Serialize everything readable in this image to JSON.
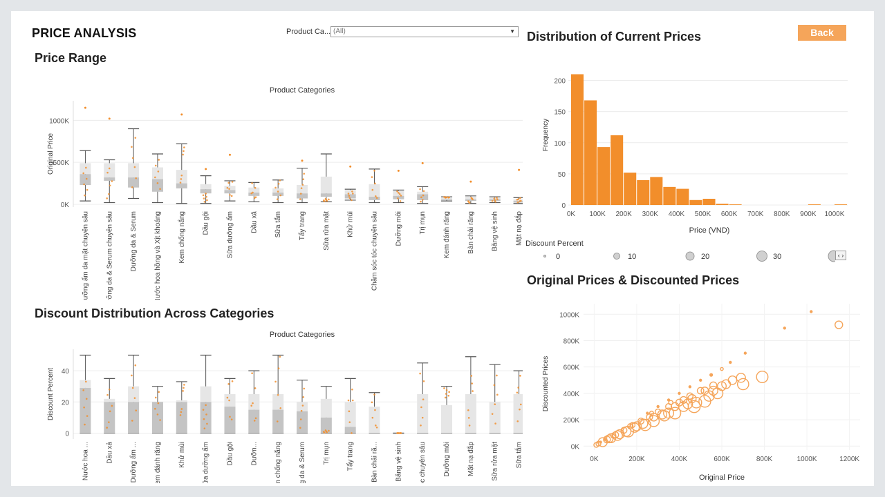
{
  "header": {
    "title": "PRICE ANALYSIS",
    "filter_label": "Product Ca...",
    "filter_value": "(All)",
    "back_label": "Back"
  },
  "colors": {
    "accent": "#f28e2b",
    "accent_light": "#f5a55a",
    "box_dark": "#c4c4c4",
    "box_light": "#e6e6e6",
    "whisker": "#555555"
  },
  "price_range": {
    "title": "Price Range",
    "top_label": "Product Categories",
    "ylabel": "Original Price",
    "yticks": [
      {
        "v": 0,
        "label": "0K"
      },
      {
        "v": 500,
        "label": "500K"
      },
      {
        "v": 1000,
        "label": "1000K"
      }
    ]
  },
  "discount_dist": {
    "title": "Discount Distribution Across Categories",
    "top_label": "Product Categories",
    "ylabel": "Discount Percent",
    "yticks": [
      {
        "v": 0,
        "label": "0"
      },
      {
        "v": 20,
        "label": "20"
      },
      {
        "v": 40,
        "label": "40"
      }
    ]
  },
  "histogram": {
    "title": "Distribution of Current Prices",
    "xlabel": "Price (VND)",
    "ylabel": "Frequency",
    "yticks": [
      0,
      50,
      100,
      150,
      200
    ],
    "xticks": [
      "0K",
      "100K",
      "200K",
      "300K",
      "400K",
      "500K",
      "600K",
      "700K",
      "800K",
      "900K",
      "1000K"
    ]
  },
  "legend": {
    "title": "Discount Percent",
    "items": [
      {
        "label": "0"
      },
      {
        "label": "10"
      },
      {
        "label": "20"
      },
      {
        "label": "30"
      }
    ],
    "nav": "‹ ›"
  },
  "scatter": {
    "title": "Original Prices & Discounted Prices",
    "xlabel": "Original Price",
    "ylabel": "Discounted Prices",
    "xticks": [
      "0K",
      "200K",
      "400K",
      "600K",
      "800K",
      "1000K",
      "1200K"
    ],
    "yticks": [
      "0K",
      "200K",
      "400K",
      "600K",
      "800K",
      "1000K"
    ]
  },
  "chart_data": [
    {
      "type": "box",
      "title": "Price Range",
      "xlabel": "Product Categories",
      "ylabel": "Original Price",
      "unit": "K VND",
      "ylim": [
        0,
        1200
      ],
      "categories": [
        "Dưỡng ẩm da mặt chuyên sâu",
        "Dưỡng da & Serum chuyên sâu",
        "Dưỡng da & Serum",
        "Nước hoa hồng và Xịt khoáng",
        "Kem chống nắng",
        "Dầu gội",
        "Sữa dưỡng ẩm",
        "Dầu xả",
        "Sữa tắm",
        "Tẩy trang",
        "Sữa rửa mặt",
        "Khử mùi",
        "Chăm sóc tóc chuyên sâu",
        "Dưỡng môi",
        "Trị mụn",
        "Kem đánh răng",
        "Bàn chải răng",
        "Băng vệ sinh",
        "Mặt nạ đắp"
      ],
      "boxes": [
        {
          "min": 40,
          "q1": 230,
          "median": 360,
          "q3": 490,
          "max": 640,
          "outliers": [
            1150
          ]
        },
        {
          "min": 20,
          "q1": 280,
          "median": 320,
          "q3": 490,
          "max": 530,
          "outliers": [
            1020
          ]
        },
        {
          "min": 70,
          "q1": 200,
          "median": 320,
          "q3": 490,
          "max": 900,
          "outliers": []
        },
        {
          "min": 20,
          "q1": 150,
          "median": 300,
          "q3": 440,
          "max": 600,
          "outliers": []
        },
        {
          "min": 10,
          "q1": 190,
          "median": 250,
          "q3": 410,
          "max": 720,
          "outliers": [
            1070
          ]
        },
        {
          "min": 10,
          "q1": 130,
          "median": 180,
          "q3": 240,
          "max": 340,
          "outliers": [
            420
          ]
        },
        {
          "min": 40,
          "q1": 130,
          "median": 170,
          "q3": 220,
          "max": 280,
          "outliers": [
            590
          ]
        },
        {
          "min": 30,
          "q1": 100,
          "median": 140,
          "q3": 200,
          "max": 260,
          "outliers": []
        },
        {
          "min": 20,
          "q1": 100,
          "median": 140,
          "q3": 190,
          "max": 290,
          "outliers": []
        },
        {
          "min": 20,
          "q1": 70,
          "median": 130,
          "q3": 230,
          "max": 430,
          "outliers": [
            520
          ]
        },
        {
          "min": 30,
          "q1": 90,
          "median": 130,
          "q3": 330,
          "max": 600,
          "outliers": []
        },
        {
          "min": 50,
          "q1": 70,
          "median": 120,
          "q3": 170,
          "max": 180,
          "outliers": [
            450
          ]
        },
        {
          "min": 20,
          "q1": 50,
          "median": 90,
          "q3": 240,
          "max": 420,
          "outliers": []
        },
        {
          "min": 20,
          "q1": 60,
          "median": 100,
          "q3": 160,
          "max": 170,
          "outliers": [
            400
          ]
        },
        {
          "min": 10,
          "q1": 50,
          "median": 120,
          "q3": 150,
          "max": 210,
          "outliers": [
            490
          ]
        },
        {
          "min": 40,
          "q1": 50,
          "median": 60,
          "q3": 80,
          "max": 90,
          "outliers": []
        },
        {
          "min": 10,
          "q1": 40,
          "median": 60,
          "q3": 90,
          "max": 100,
          "outliers": [
            270
          ]
        },
        {
          "min": 20,
          "q1": 40,
          "median": 60,
          "q3": 80,
          "max": 90,
          "outliers": []
        },
        {
          "min": 10,
          "q1": 20,
          "median": 40,
          "q3": 60,
          "max": 80,
          "outliers": [
            410
          ]
        }
      ]
    },
    {
      "type": "box",
      "title": "Discount Distribution Across Categories",
      "xlabel": "Product Categories",
      "ylabel": "Discount Percent",
      "ylim": [
        -2,
        52
      ],
      "categories": [
        "Nước hoa ...",
        "Dầu xả",
        "Dưỡng ẩm ...",
        "Kem đánh răng",
        "Khử mùi",
        "Sữa dưỡng ẩm",
        "Dầu gội",
        "Dưỡn...",
        "Kem chống nắng",
        "Dưỡng da & Serum",
        "Trị mụn",
        "Tẩy trang",
        "Bàn chải ră...",
        "Băng vệ sinh",
        "Chăm sóc tóc chuyên sâu",
        "Dưỡng môi",
        "Mặt nạ đắp",
        "Sữa rửa mặt",
        "Sữa tắm"
      ],
      "boxes": [
        {
          "min": 0,
          "q1": 0,
          "median": 29,
          "q3": 34,
          "max": 50
        },
        {
          "min": 0,
          "q1": 0,
          "median": 20,
          "q3": 22,
          "max": 35
        },
        {
          "min": 0,
          "q1": 0,
          "median": 20,
          "q3": 30,
          "max": 50
        },
        {
          "min": 0,
          "q1": 0,
          "median": 20,
          "q3": 20,
          "max": 30
        },
        {
          "min": 0,
          "q1": 0,
          "median": 20,
          "q3": 21,
          "max": 33
        },
        {
          "min": 0,
          "q1": 0,
          "median": 20,
          "q3": 30,
          "max": 50
        },
        {
          "min": 0,
          "q1": 0,
          "median": 17,
          "q3": 25,
          "max": 35
        },
        {
          "min": 0,
          "q1": 0,
          "median": 15,
          "q3": 25,
          "max": 40
        },
        {
          "min": 0,
          "q1": 0,
          "median": 15,
          "q3": 25,
          "max": 50
        },
        {
          "min": 0,
          "q1": 0,
          "median": 14,
          "q3": 20,
          "max": 34
        },
        {
          "min": 0,
          "q1": 0,
          "median": 10,
          "q3": 22,
          "max": 30
        },
        {
          "min": 0,
          "q1": 0,
          "median": 4,
          "q3": 20,
          "max": 35
        },
        {
          "min": 0,
          "q1": 0,
          "median": 0,
          "q3": 17,
          "max": 26
        },
        {
          "min": 0,
          "q1": 0,
          "median": 0,
          "q3": 0,
          "max": 0
        },
        {
          "min": 0,
          "q1": 0,
          "median": 0,
          "q3": 25,
          "max": 45
        },
        {
          "min": 0,
          "q1": 0,
          "median": 0,
          "q3": 18,
          "max": 30
        },
        {
          "min": 0,
          "q1": 0,
          "median": 0,
          "q3": 25,
          "max": 49
        },
        {
          "min": 0,
          "q1": 0,
          "median": 0,
          "q3": 20,
          "max": 44
        },
        {
          "min": 0,
          "q1": 0,
          "median": 0,
          "q3": 25,
          "max": 40
        }
      ]
    },
    {
      "type": "bar",
      "title": "Distribution of Current Prices",
      "xlabel": "Price (VND)",
      "ylabel": "Frequency",
      "bin_width": 50,
      "unit": "K VND",
      "bins_start": [
        0,
        50,
        100,
        150,
        200,
        250,
        300,
        350,
        400,
        450,
        500,
        550,
        600,
        650,
        700,
        750,
        800,
        850,
        900,
        950,
        1000
      ],
      "values": [
        210,
        168,
        93,
        112,
        52,
        40,
        45,
        29,
        26,
        8,
        10,
        2,
        1,
        0,
        0,
        0,
        0,
        0,
        1,
        0,
        1
      ],
      "ylim": [
        0,
        225
      ]
    },
    {
      "type": "scatter",
      "title": "Original Prices & Discounted Prices",
      "xlabel": "Original Price",
      "ylabel": "Discounted Prices",
      "unit": "K VND",
      "xlim": [
        -50,
        1250
      ],
      "ylim": [
        -30,
        1080
      ],
      "size_by": "Discount Percent",
      "points": [
        [
          1020,
          1020,
          0
        ],
        [
          895,
          895,
          0
        ],
        [
          1150,
          920,
          20
        ],
        [
          790,
          525,
          34
        ],
        [
          700,
          470,
          33
        ],
        [
          690,
          518,
          25
        ],
        [
          710,
          705,
          0
        ],
        [
          640,
          635,
          0
        ],
        [
          600,
          455,
          24
        ],
        [
          580,
          400,
          31
        ],
        [
          560,
          460,
          18
        ],
        [
          520,
          340,
          35
        ],
        [
          500,
          420,
          16
        ],
        [
          470,
          300,
          36
        ],
        [
          450,
          380,
          15
        ],
        [
          420,
          300,
          28
        ],
        [
          400,
          330,
          17
        ],
        [
          380,
          250,
          34
        ],
        [
          350,
          300,
          14
        ],
        [
          330,
          230,
          30
        ],
        [
          300,
          260,
          13
        ],
        [
          280,
          190,
          32
        ],
        [
          260,
          220,
          15
        ],
        [
          240,
          160,
          33
        ],
        [
          220,
          190,
          14
        ],
        [
          200,
          150,
          25
        ],
        [
          180,
          160,
          11
        ],
        [
          160,
          110,
          31
        ],
        [
          140,
          120,
          14
        ],
        [
          120,
          90,
          25
        ],
        [
          100,
          85,
          15
        ],
        [
          80,
          60,
          25
        ],
        [
          60,
          50,
          17
        ],
        [
          40,
          30,
          25
        ],
        [
          20,
          18,
          10
        ],
        [
          10,
          9,
          10
        ],
        [
          30,
          30,
          0
        ],
        [
          50,
          50,
          0
        ],
        [
          250,
          250,
          0
        ],
        [
          300,
          300,
          0
        ],
        [
          350,
          350,
          0
        ],
        [
          400,
          400,
          0
        ],
        [
          450,
          450,
          0
        ],
        [
          500,
          500,
          0
        ],
        [
          550,
          540,
          2
        ],
        [
          600,
          585,
          3
        ],
        [
          350,
          250,
          29
        ],
        [
          420,
          350,
          17
        ],
        [
          520,
          420,
          19
        ],
        [
          560,
          420,
          25
        ],
        [
          480,
          330,
          31
        ],
        [
          440,
          320,
          27
        ],
        [
          380,
          300,
          21
        ],
        [
          320,
          240,
          25
        ],
        [
          280,
          220,
          21
        ],
        [
          230,
          170,
          26
        ],
        [
          190,
          140,
          26
        ],
        [
          150,
          110,
          27
        ],
        [
          110,
          80,
          27
        ],
        [
          70,
          55,
          21
        ],
        [
          620,
          470,
          24
        ],
        [
          650,
          500,
          23
        ],
        [
          540,
          380,
          30
        ],
        [
          460,
          360,
          22
        ],
        [
          360,
          330,
          8
        ],
        [
          270,
          250,
          7
        ],
        [
          170,
          150,
          12
        ],
        [
          90,
          80,
          11
        ]
      ]
    }
  ]
}
